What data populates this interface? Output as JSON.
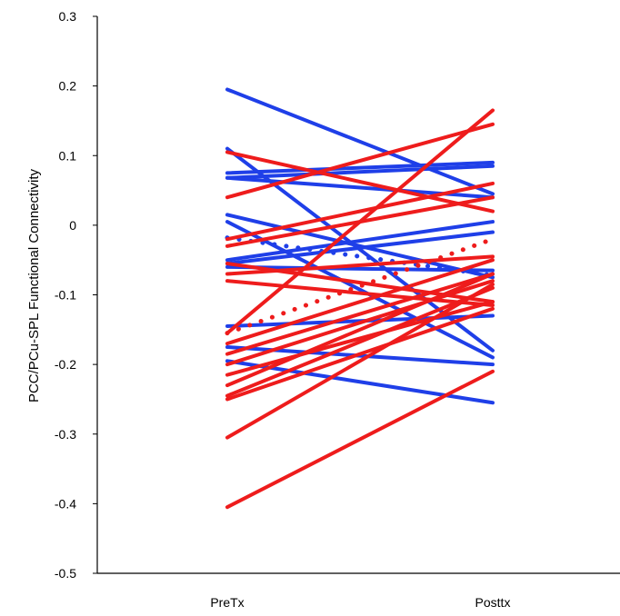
{
  "chart_data": {
    "type": "line",
    "title": "",
    "xlabel": "",
    "ylabel": "PCC/PCu-SPL Functional Connectivity",
    "categories": [
      "PreTx",
      "Posttx"
    ],
    "ylim": [
      -0.5,
      0.3
    ],
    "yticks": [
      0.3,
      0.2,
      0.1,
      0,
      -0.1,
      -0.2,
      -0.3,
      -0.4,
      -0.5
    ],
    "ytick_labels": [
      "0.3",
      "0.2",
      "0.1",
      "0",
      "-0.1",
      "-0.2",
      "-0.3",
      "-0.4",
      "-0.5"
    ],
    "grid": false,
    "legend": "none",
    "colors": {
      "group_blue": "#1f3fe8",
      "group_red": "#ee1c1c"
    },
    "series": [
      {
        "group": "blue",
        "style": "solid",
        "values": [
          0.195,
          0.045
        ]
      },
      {
        "group": "blue",
        "style": "solid",
        "values": [
          0.11,
          -0.18
        ]
      },
      {
        "group": "blue",
        "style": "solid",
        "values": [
          0.075,
          0.09
        ]
      },
      {
        "group": "blue",
        "style": "solid",
        "values": [
          0.068,
          0.085
        ]
      },
      {
        "group": "blue",
        "style": "solid",
        "values": [
          0.068,
          0.04
        ]
      },
      {
        "group": "blue",
        "style": "solid",
        "values": [
          0.015,
          -0.075
        ]
      },
      {
        "group": "blue",
        "style": "solid",
        "values": [
          0.005,
          -0.19
        ]
      },
      {
        "group": "blue",
        "style": "solid",
        "values": [
          -0.05,
          0.005
        ]
      },
      {
        "group": "blue",
        "style": "solid",
        "values": [
          -0.055,
          -0.01
        ]
      },
      {
        "group": "blue",
        "style": "solid",
        "values": [
          -0.06,
          -0.065
        ]
      },
      {
        "group": "blue",
        "style": "solid",
        "values": [
          -0.145,
          -0.13
        ]
      },
      {
        "group": "blue",
        "style": "solid",
        "values": [
          -0.175,
          -0.2
        ]
      },
      {
        "group": "blue",
        "style": "solid",
        "values": [
          -0.195,
          -0.255
        ]
      },
      {
        "group": "blue",
        "style": "dotted",
        "values": [
          -0.018,
          -0.072
        ]
      },
      {
        "group": "red",
        "style": "solid",
        "values": [
          0.105,
          0.02
        ]
      },
      {
        "group": "red",
        "style": "solid",
        "values": [
          0.04,
          0.145
        ]
      },
      {
        "group": "red",
        "style": "solid",
        "values": [
          -0.02,
          0.06
        ]
      },
      {
        "group": "red",
        "style": "solid",
        "values": [
          -0.03,
          0.04
        ]
      },
      {
        "group": "red",
        "style": "solid",
        "values": [
          -0.055,
          -0.11
        ]
      },
      {
        "group": "red",
        "style": "solid",
        "values": [
          -0.07,
          -0.045
        ]
      },
      {
        "group": "red",
        "style": "solid",
        "values": [
          -0.08,
          -0.115
        ]
      },
      {
        "group": "red",
        "style": "solid",
        "values": [
          -0.155,
          0.165
        ]
      },
      {
        "group": "red",
        "style": "solid",
        "values": [
          -0.17,
          -0.05
        ]
      },
      {
        "group": "red",
        "style": "solid",
        "values": [
          -0.185,
          -0.07
        ]
      },
      {
        "group": "red",
        "style": "solid",
        "values": [
          -0.2,
          -0.08
        ]
      },
      {
        "group": "red",
        "style": "solid",
        "values": [
          -0.215,
          -0.11
        ]
      },
      {
        "group": "red",
        "style": "solid",
        "values": [
          -0.23,
          -0.07
        ]
      },
      {
        "group": "red",
        "style": "solid",
        "values": [
          -0.245,
          -0.09
        ]
      },
      {
        "group": "red",
        "style": "solid",
        "values": [
          -0.25,
          -0.12
        ]
      },
      {
        "group": "red",
        "style": "solid",
        "values": [
          -0.305,
          -0.085
        ]
      },
      {
        "group": "red",
        "style": "solid",
        "values": [
          -0.405,
          -0.21
        ]
      },
      {
        "group": "red",
        "style": "dotted",
        "values": [
          -0.155,
          -0.02
        ]
      }
    ]
  }
}
